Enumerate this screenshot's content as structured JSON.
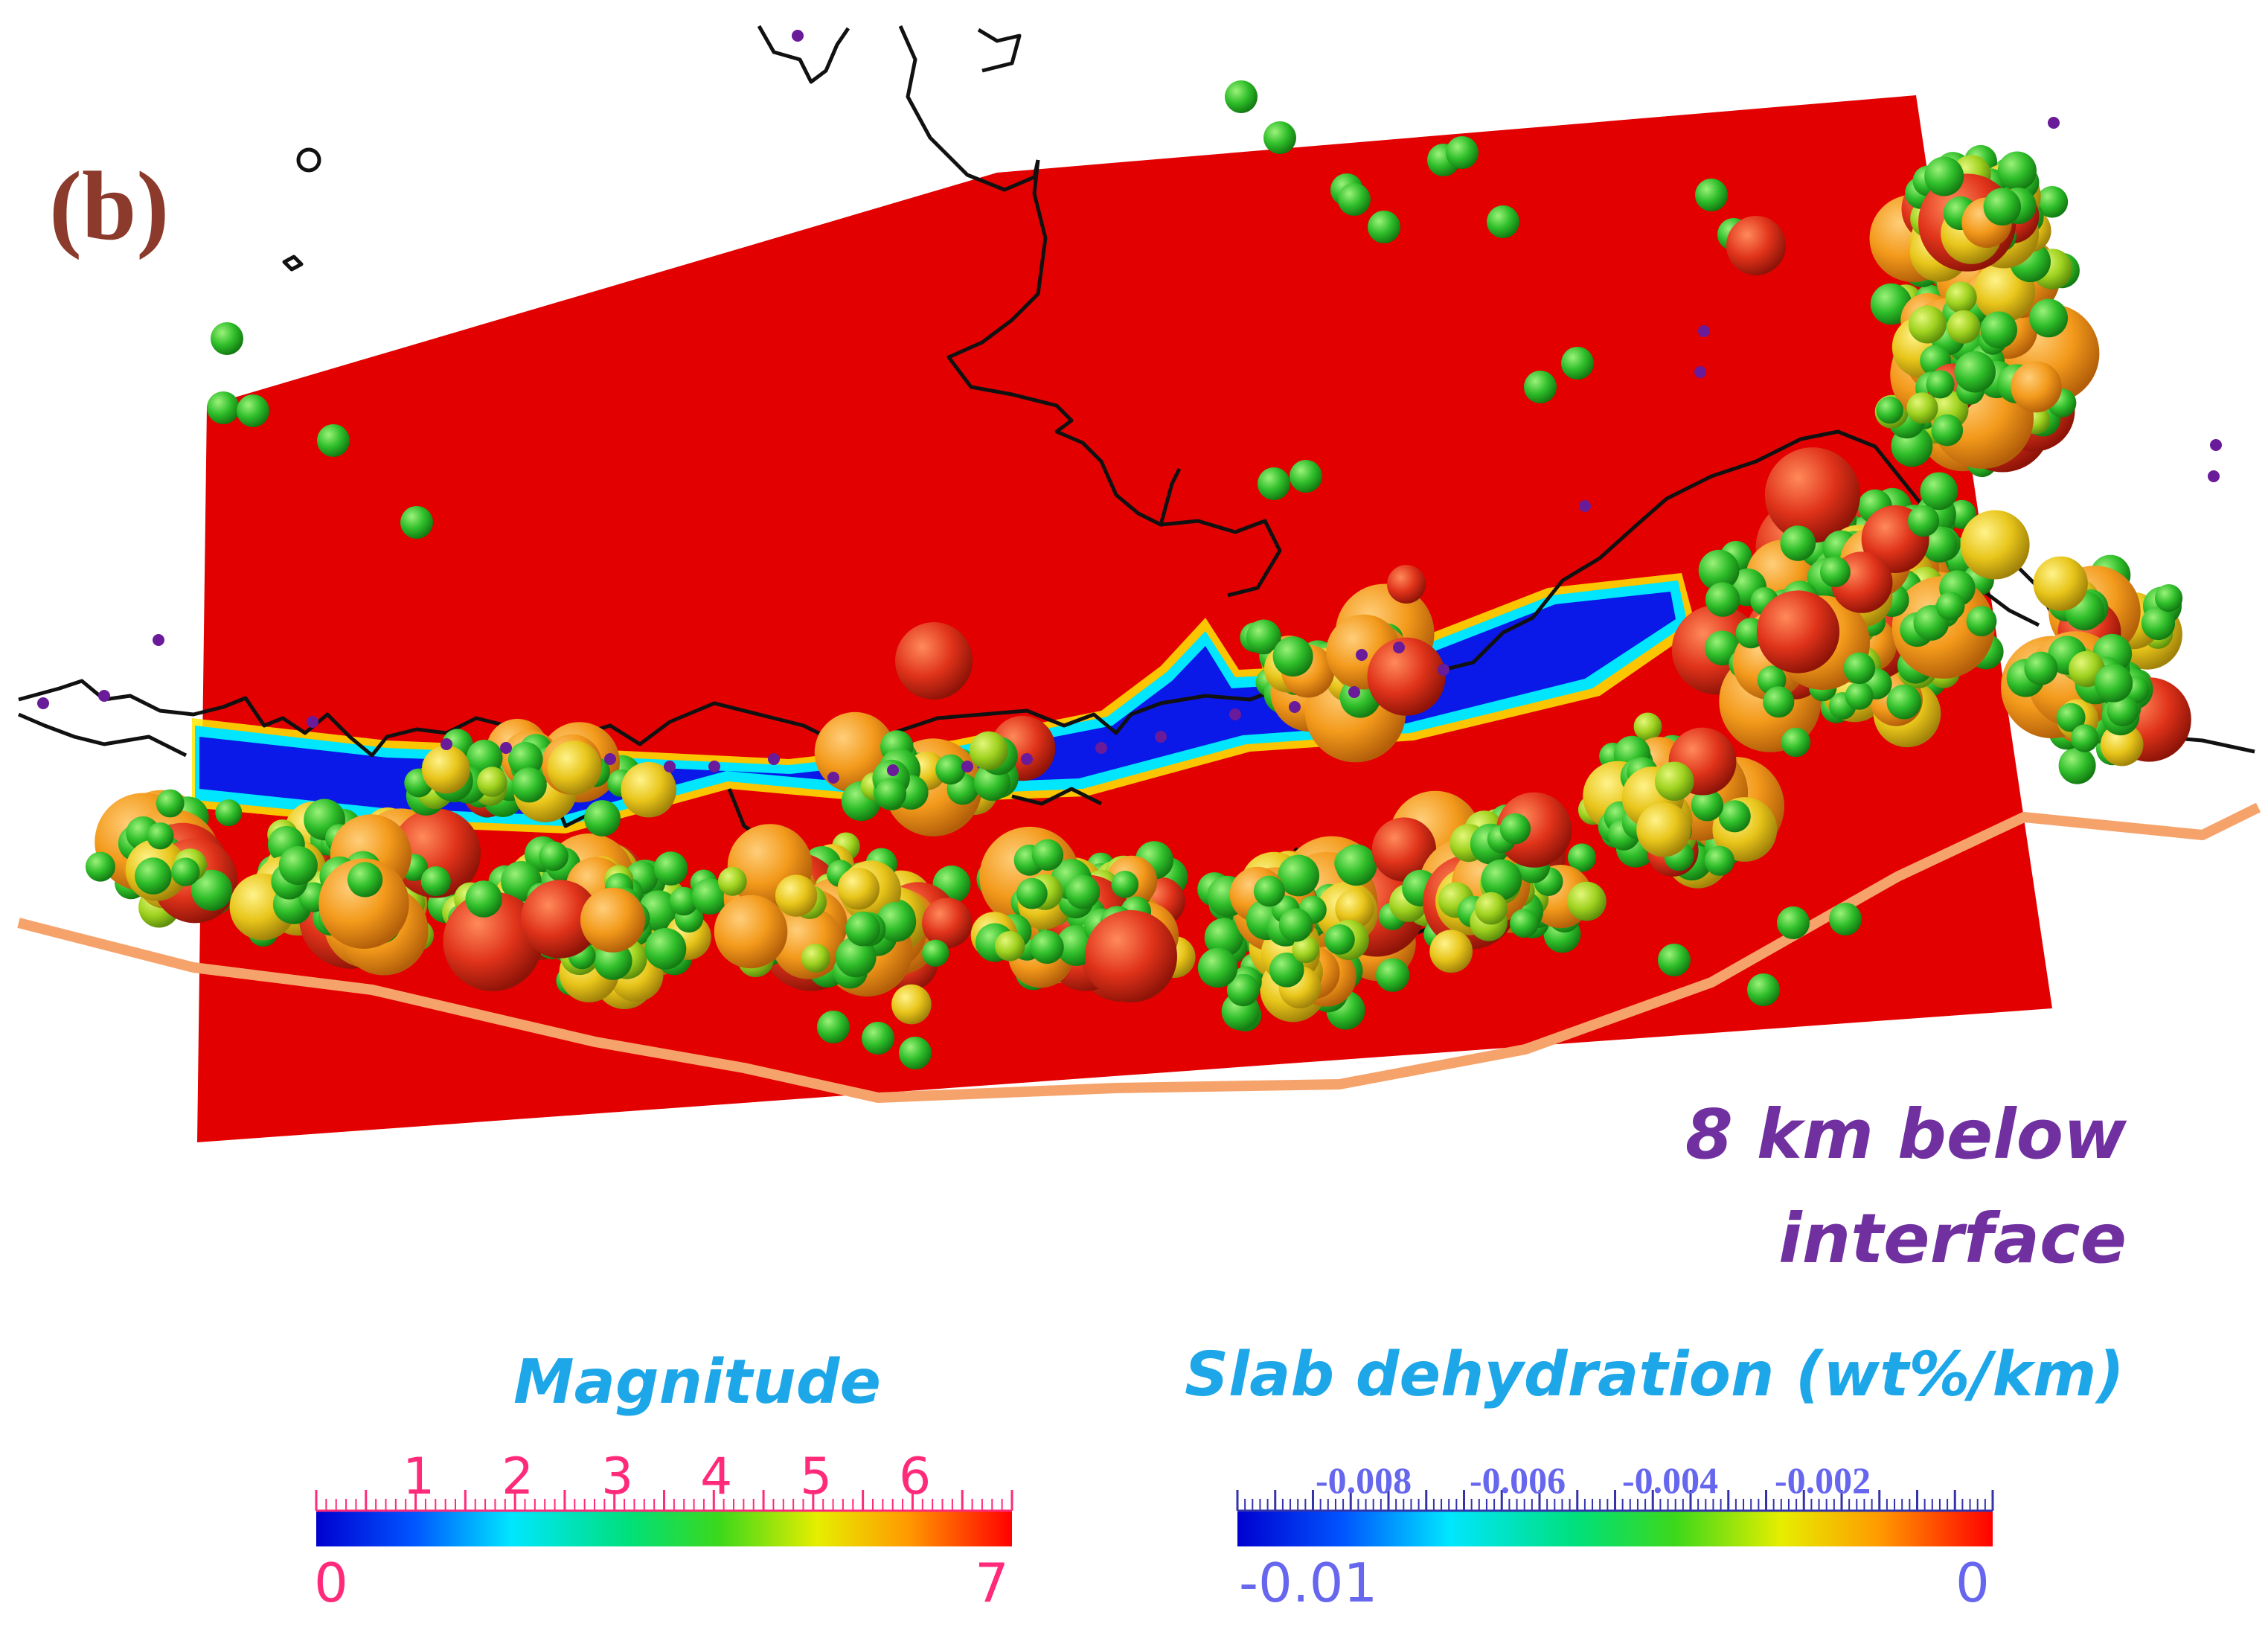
{
  "panel_label": "(b)",
  "annotation": {
    "line1": "8 km below",
    "line2": "interface"
  },
  "colorbars": {
    "magnitude": {
      "title": "Magnitude",
      "top_ticks": [
        "1",
        "2",
        "3",
        "4",
        "5",
        "6"
      ],
      "min_label": "0",
      "max_label": "7",
      "range": [
        0,
        7
      ]
    },
    "dehydration": {
      "title": "Slab dehydration (wt%/km)",
      "top_ticks": [
        "-0.008",
        "-0.006",
        "-0.004",
        "-0.002"
      ],
      "min_label": "-0.01",
      "max_label": "0",
      "range": [
        -0.01,
        0
      ]
    }
  },
  "colors": {
    "slab_surface": "#e30000",
    "dehydration_band": "#0a18e8",
    "trench_line": "#f6a36b",
    "coastline": "#111111",
    "event_points": "#6a1b9a",
    "panel_label": "#8b3a2b",
    "annotation": "#7030a0",
    "colorbar_title": "#1ea7e8",
    "magnitude_ticks": "#ff2a7a",
    "dehydration_ticks": "#6666ee"
  }
}
